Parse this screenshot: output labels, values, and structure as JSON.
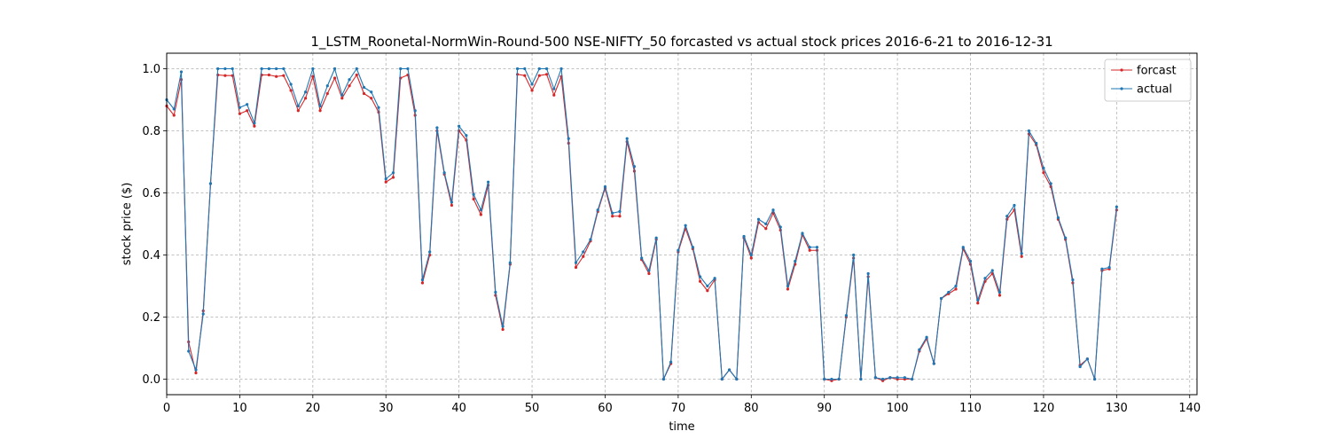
{
  "chart_data": {
    "type": "line",
    "title": "1_LSTM_Roonetal-NormWin-Round-500 NSE-NIFTY_50 forcasted vs actual stock prices 2016-6-21 to 2016-12-31",
    "xlabel": "time",
    "ylabel": "stock price ($)",
    "xlim": [
      0,
      141
    ],
    "ylim": [
      -0.05,
      1.05
    ],
    "xticks": [
      0,
      10,
      20,
      30,
      40,
      50,
      60,
      70,
      80,
      90,
      100,
      110,
      120,
      130,
      140
    ],
    "yticks": [
      0.0,
      0.2,
      0.4,
      0.6,
      0.8,
      1.0
    ],
    "xtick_labels": [
      "0",
      "10",
      "20",
      "30",
      "40",
      "50",
      "60",
      "70",
      "80",
      "90",
      "100",
      "110",
      "120",
      "130",
      "140"
    ],
    "ytick_labels": [
      "0.0",
      "0.2",
      "0.4",
      "0.6",
      "0.8",
      "1.0"
    ],
    "grid": true,
    "legend": "top-right",
    "series": [
      {
        "name": "forcast",
        "color": "#d62728",
        "values": [
          0.88,
          0.85,
          0.965,
          0.12,
          0.02,
          0.22,
          0.63,
          0.98,
          0.978,
          0.978,
          0.855,
          0.865,
          0.815,
          0.98,
          0.98,
          0.975,
          0.978,
          0.93,
          0.865,
          0.905,
          0.975,
          0.865,
          0.92,
          0.97,
          0.905,
          0.945,
          0.98,
          0.92,
          0.905,
          0.86,
          0.635,
          0.65,
          0.97,
          0.98,
          0.85,
          0.31,
          0.4,
          0.8,
          0.66,
          0.56,
          0.8,
          0.77,
          0.58,
          0.53,
          0.625,
          0.27,
          0.16,
          0.37,
          0.982,
          0.978,
          0.93,
          0.978,
          0.982,
          0.915,
          0.975,
          0.76,
          0.36,
          0.395,
          0.445,
          0.54,
          0.615,
          0.525,
          0.525,
          0.765,
          0.67,
          0.385,
          0.34,
          0.45,
          0.0,
          0.05,
          0.41,
          0.485,
          0.42,
          0.315,
          0.285,
          0.32,
          0.0,
          0.03,
          0.0,
          0.455,
          0.39,
          0.505,
          0.485,
          0.535,
          0.48,
          0.29,
          0.37,
          0.465,
          0.415,
          0.415,
          0.0,
          -0.005,
          0.0,
          0.2,
          0.39,
          0.0,
          0.33,
          0.005,
          -0.005,
          0.005,
          0.0,
          0.0,
          0.0,
          0.09,
          0.13,
          0.05,
          0.26,
          0.275,
          0.29,
          0.42,
          0.37,
          0.245,
          0.315,
          0.34,
          0.27,
          0.515,
          0.545,
          0.395,
          0.79,
          0.755,
          0.665,
          0.62,
          0.515,
          0.45,
          0.31,
          0.045,
          0.065,
          0.0,
          0.35,
          0.355,
          0.545
        ]
      },
      {
        "name": "actual",
        "color": "#1f77b4",
        "values": [
          0.9,
          0.87,
          0.99,
          0.09,
          0.03,
          0.21,
          0.63,
          1.0,
          1.0,
          1.0,
          0.875,
          0.885,
          0.825,
          1.0,
          1.0,
          1.0,
          1.0,
          0.95,
          0.88,
          0.925,
          1.0,
          0.88,
          0.945,
          1.0,
          0.915,
          0.965,
          1.0,
          0.94,
          0.925,
          0.875,
          0.645,
          0.665,
          1.0,
          1.0,
          0.865,
          0.32,
          0.41,
          0.81,
          0.665,
          0.57,
          0.815,
          0.785,
          0.595,
          0.545,
          0.635,
          0.28,
          0.17,
          0.375,
          1.0,
          1.0,
          0.95,
          1.0,
          1.0,
          0.935,
          1.0,
          0.775,
          0.375,
          0.41,
          0.45,
          0.545,
          0.62,
          0.535,
          0.54,
          0.775,
          0.685,
          0.39,
          0.35,
          0.455,
          0.0,
          0.055,
          0.415,
          0.495,
          0.425,
          0.33,
          0.3,
          0.325,
          0.0,
          0.03,
          0.0,
          0.46,
          0.4,
          0.515,
          0.5,
          0.545,
          0.49,
          0.3,
          0.38,
          0.47,
          0.425,
          0.425,
          0.0,
          0.0,
          0.0,
          0.205,
          0.4,
          0.0,
          0.34,
          0.005,
          0.0,
          0.005,
          0.005,
          0.005,
          0.0,
          0.095,
          0.135,
          0.05,
          0.26,
          0.28,
          0.3,
          0.425,
          0.38,
          0.255,
          0.325,
          0.35,
          0.28,
          0.525,
          0.56,
          0.405,
          0.8,
          0.76,
          0.68,
          0.63,
          0.52,
          0.455,
          0.32,
          0.04,
          0.065,
          0.0,
          0.355,
          0.36,
          0.555
        ]
      }
    ]
  }
}
